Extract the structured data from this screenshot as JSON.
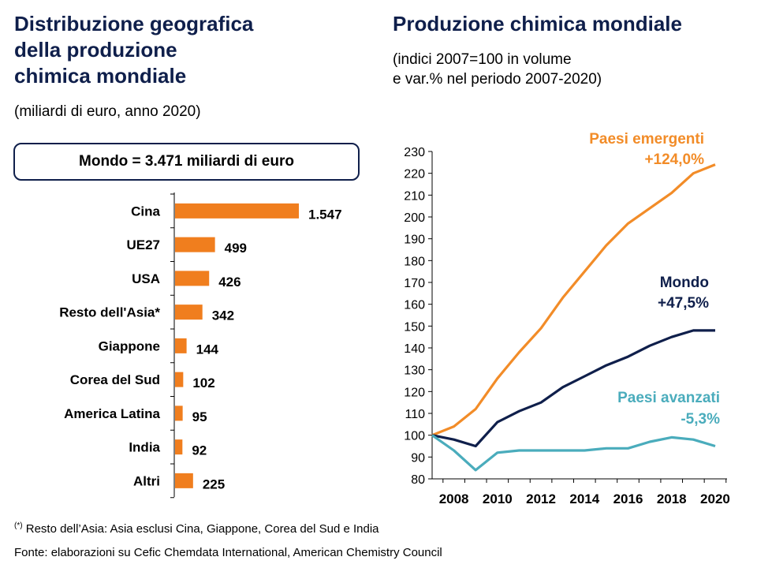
{
  "left": {
    "title_lines": [
      "Distribuzione geografica",
      "della produzione",
      "chimica mondiale"
    ],
    "subtitle": "(miliardi di euro, anno 2020)",
    "world_label": "Mondo = 3.471 miliardi di euro"
  },
  "right": {
    "title": "Produzione chimica mondiale",
    "subtitle_lines": [
      "(indici 2007=100 in volume",
      "e var.% nel periodo 2007-2020)"
    ]
  },
  "footer": {
    "note_mark": "(*)",
    "note": " Resto dell’Asia: Asia esclusi Cina, Giappone, Corea del Sud e India",
    "source": "Fonte: elaborazioni su Cefic Chemdata International, American Chemistry Council"
  },
  "colors": {
    "bar": "#f07e1e",
    "emerging": "#f28c28",
    "world": "#0f1f4b",
    "advanced": "#4aacbc",
    "title": "#0f1f4b"
  },
  "chart_data": [
    {
      "type": "bar",
      "orientation": "horizontal",
      "categories": [
        "Cina",
        "UE27",
        "USA",
        "Resto dell'Asia*",
        "Giappone",
        "Corea del Sud",
        "America Latina",
        "India",
        "Altri"
      ],
      "values": [
        1547,
        499,
        426,
        342,
        144,
        102,
        95,
        92,
        225
      ],
      "value_labels": [
        "1.547",
        "499",
        "426",
        "342",
        "144",
        "102",
        "95",
        "92",
        "225"
      ],
      "xlim": [
        0,
        1600
      ]
    },
    {
      "type": "line",
      "x": [
        2007,
        2008,
        2009,
        2010,
        2011,
        2012,
        2013,
        2014,
        2015,
        2016,
        2017,
        2018,
        2019,
        2020
      ],
      "ylim": [
        80,
        230
      ],
      "yticks": [
        80,
        90,
        100,
        110,
        120,
        130,
        140,
        150,
        160,
        170,
        180,
        190,
        200,
        210,
        220,
        230
      ],
      "xtick_labels": [
        "2008",
        "2010",
        "2012",
        "2014",
        "2016",
        "2018",
        "2020"
      ],
      "xtick_values": [
        2008,
        2010,
        2012,
        2014,
        2016,
        2018,
        2020
      ],
      "series": [
        {
          "name": "Paesi emergenti",
          "change": "+124,0%",
          "color": "#f28c28",
          "values": [
            100,
            104,
            112,
            126,
            138,
            149,
            163,
            175,
            187,
            197,
            204,
            211,
            220,
            224
          ]
        },
        {
          "name": "Mondo",
          "change": "+47,5%",
          "color": "#0f1f4b",
          "values": [
            100,
            98,
            95,
            106,
            111,
            115,
            122,
            127,
            132,
            136,
            141,
            145,
            148,
            148
          ]
        },
        {
          "name": "Paesi avanzati",
          "change": "-5,3%",
          "color": "#4aacbc",
          "values": [
            100,
            93,
            84,
            92,
            93,
            93,
            93,
            93,
            94,
            94,
            97,
            99,
            98,
            95
          ]
        }
      ]
    }
  ]
}
